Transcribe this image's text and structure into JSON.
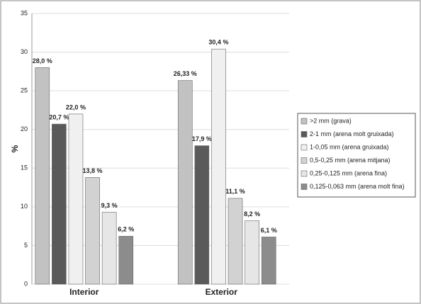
{
  "chart_data": {
    "type": "bar",
    "ylabel": "%",
    "categories": [
      "Interior",
      "Exterior"
    ],
    "series": [
      {
        "name": ">2 mm (grava)",
        "color": "#c2c2c2",
        "values": [
          28.0,
          26.33
        ],
        "value_labels": [
          "28,0 %",
          "26,33 %"
        ]
      },
      {
        "name": "2-1 mm (arena molt gruixada)",
        "color": "#5a5a5a",
        "values": [
          20.7,
          17.9
        ],
        "value_labels": [
          "20,7 %",
          "17,9 %"
        ]
      },
      {
        "name": "1-0,05 mm (arena gruixada)",
        "color": "#f0f0f0",
        "values": [
          22.0,
          30.4
        ],
        "value_labels": [
          "22,0 %",
          "30,4 %"
        ]
      },
      {
        "name": "0,5-0,25 mm (arena mitjana)",
        "color": "#d2d2d2",
        "values": [
          13.8,
          11.1
        ],
        "value_labels": [
          "13,8 %",
          "11,1 %"
        ]
      },
      {
        "name": "0,25-0,125 mm (arena fina)",
        "color": "#e6e6e6",
        "values": [
          9.3,
          8.2
        ],
        "value_labels": [
          "9,3 %",
          "8,2 %"
        ]
      },
      {
        "name": "0,125-0,063 mm (arena molt fina)",
        "color": "#8c8c8c",
        "values": [
          6.2,
          6.1
        ],
        "value_labels": [
          "6,2 %",
          "6,1 %"
        ]
      }
    ],
    "ylim": [
      0,
      35
    ],
    "yticks": [
      0,
      5,
      10,
      15,
      20,
      25,
      30,
      35
    ],
    "grid": true
  }
}
